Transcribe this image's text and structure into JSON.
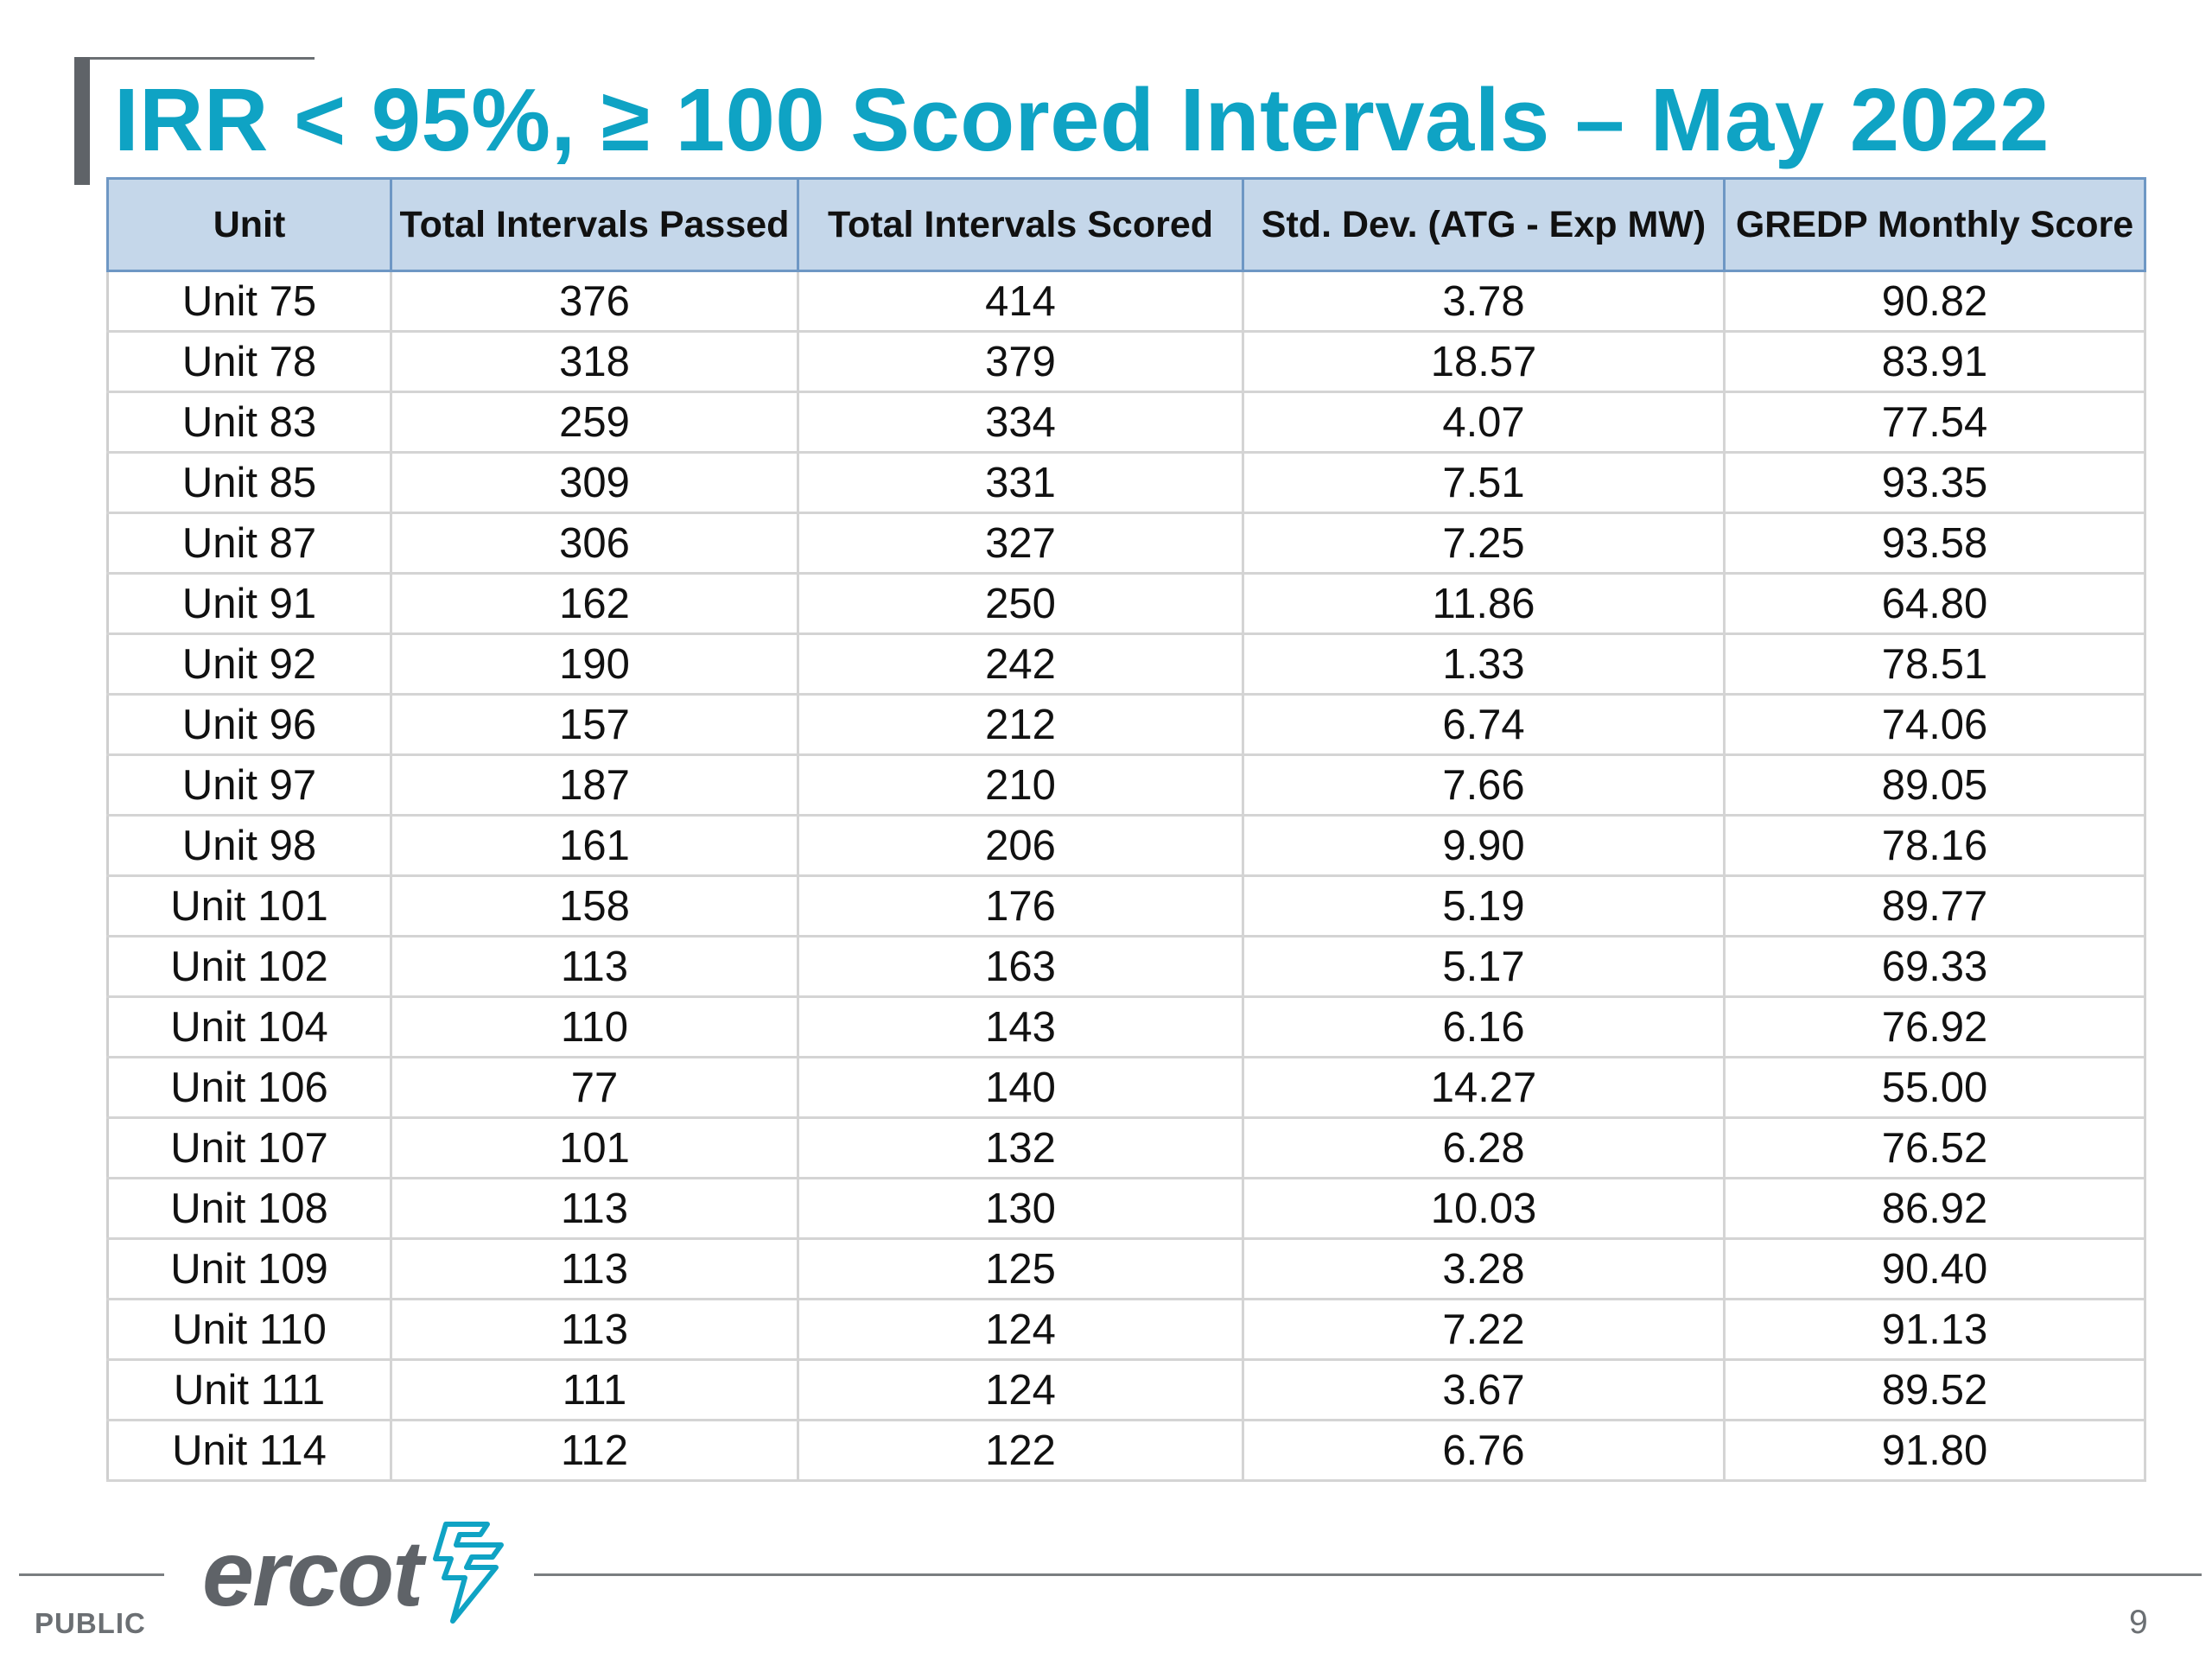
{
  "title": "IRR < 95%, ≥ 100 Scored Intervals – May 2022",
  "table": {
    "headers": [
      "Unit",
      "Total Intervals Passed",
      "Total Intervals Scored",
      "Std. Dev. (ATG - Exp MW)",
      "GREDP Monthly Score"
    ],
    "rows": [
      [
        "Unit 75",
        "376",
        "414",
        "3.78",
        "90.82"
      ],
      [
        "Unit 78",
        "318",
        "379",
        "18.57",
        "83.91"
      ],
      [
        "Unit 83",
        "259",
        "334",
        "4.07",
        "77.54"
      ],
      [
        "Unit 85",
        "309",
        "331",
        "7.51",
        "93.35"
      ],
      [
        "Unit 87",
        "306",
        "327",
        "7.25",
        "93.58"
      ],
      [
        "Unit 91",
        "162",
        "250",
        "11.86",
        "64.80"
      ],
      [
        "Unit 92",
        "190",
        "242",
        "1.33",
        "78.51"
      ],
      [
        "Unit 96",
        "157",
        "212",
        "6.74",
        "74.06"
      ],
      [
        "Unit 97",
        "187",
        "210",
        "7.66",
        "89.05"
      ],
      [
        "Unit 98",
        "161",
        "206",
        "9.90",
        "78.16"
      ],
      [
        "Unit 101",
        "158",
        "176",
        "5.19",
        "89.77"
      ],
      [
        "Unit 102",
        "113",
        "163",
        "5.17",
        "69.33"
      ],
      [
        "Unit 104",
        "110",
        "143",
        "6.16",
        "76.92"
      ],
      [
        "Unit 106",
        "77",
        "140",
        "14.27",
        "55.00"
      ],
      [
        "Unit 107",
        "101",
        "132",
        "6.28",
        "76.52"
      ],
      [
        "Unit 108",
        "113",
        "130",
        "10.03",
        "86.92"
      ],
      [
        "Unit 109",
        "113",
        "125",
        "3.28",
        "90.40"
      ],
      [
        "Unit 110",
        "113",
        "124",
        "7.22",
        "91.13"
      ],
      [
        "Unit 111",
        "111",
        "124",
        "3.67",
        "89.52"
      ],
      [
        "Unit 114",
        "112",
        "122",
        "6.76",
        "91.80"
      ]
    ]
  },
  "footer": {
    "classification": "PUBLIC",
    "logo_text": "ercot",
    "logo_icon": "ercot-lightning-mark-icon",
    "page_number": "9"
  },
  "colors": {
    "title": "#0fa3c4",
    "header_fill": "#c5d7ea",
    "header_border": "#6e97c4",
    "logo_grey": "#5f6368",
    "logo_accent": "#0fa3c4"
  }
}
